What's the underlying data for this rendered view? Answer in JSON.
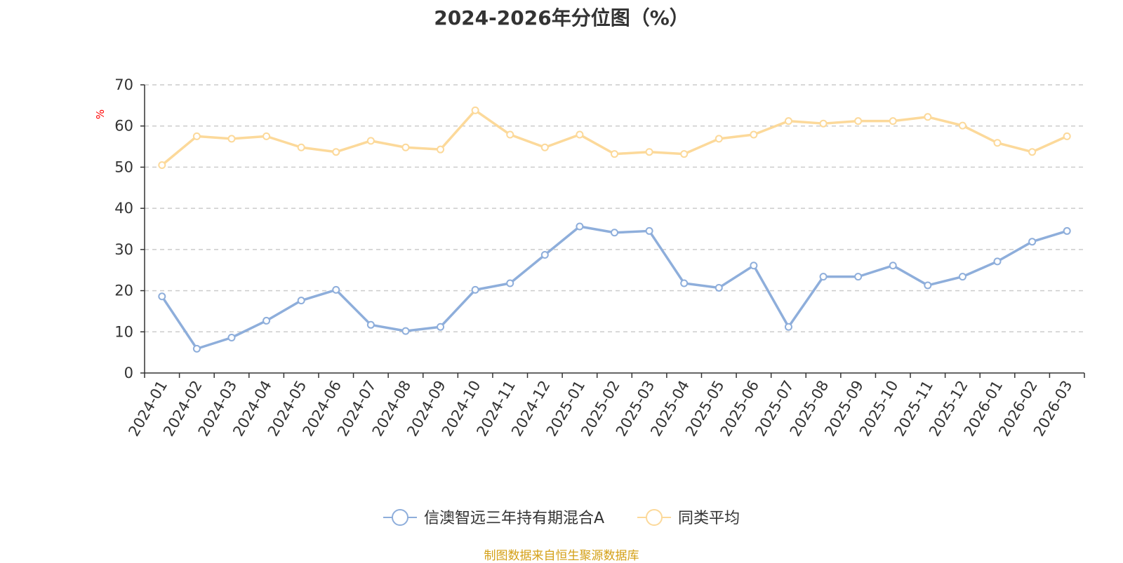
{
  "chart_data": {
    "type": "line",
    "title": "2024-2026年分位图（%）",
    "ylabel": "%",
    "ylim": [
      0,
      70
    ],
    "yticks": [
      0,
      10,
      20,
      30,
      40,
      50,
      60,
      70
    ],
    "grid": true,
    "legend_position": "bottom",
    "categories": [
      "2024-01",
      "2024-02",
      "2024-03",
      "2024-04",
      "2024-05",
      "2024-06",
      "2024-07",
      "2024-08",
      "2024-09",
      "2024-10",
      "2024-11",
      "2024-12",
      "2025-01",
      "2025-02",
      "2025-03",
      "2025-04",
      "2025-05",
      "2025-06",
      "2025-07",
      "2025-08",
      "2025-09",
      "2025-10",
      "2025-11",
      "2025-12",
      "2026-01",
      "2026-02",
      "2026-03"
    ],
    "series": [
      {
        "name": "信澳智远三年持有期混合A",
        "color": "#8eaedb",
        "values": [
          18.6,
          5.9,
          8.6,
          12.7,
          17.6,
          20.2,
          11.7,
          10.2,
          11.2,
          20.2,
          21.8,
          28.7,
          35.6,
          34.1,
          34.5,
          21.8,
          20.7,
          26.1,
          11.2,
          23.4,
          23.4,
          26.1,
          21.3,
          23.4,
          27.1,
          31.9,
          34.5
        ]
      },
      {
        "name": "同类平均",
        "color": "#fcd99a",
        "values": [
          50.5,
          57.5,
          56.9,
          57.5,
          54.8,
          53.7,
          56.4,
          54.8,
          54.3,
          63.8,
          57.9,
          54.8,
          57.9,
          53.2,
          53.7,
          53.2,
          56.9,
          57.9,
          61.2,
          60.6,
          61.2,
          61.2,
          62.2,
          60.1,
          55.9,
          53.7,
          57.5
        ]
      }
    ]
  },
  "unit_color": "#ff0000",
  "source_note": "制图数据来自恒生聚源数据库",
  "source_color": "#d4a017"
}
